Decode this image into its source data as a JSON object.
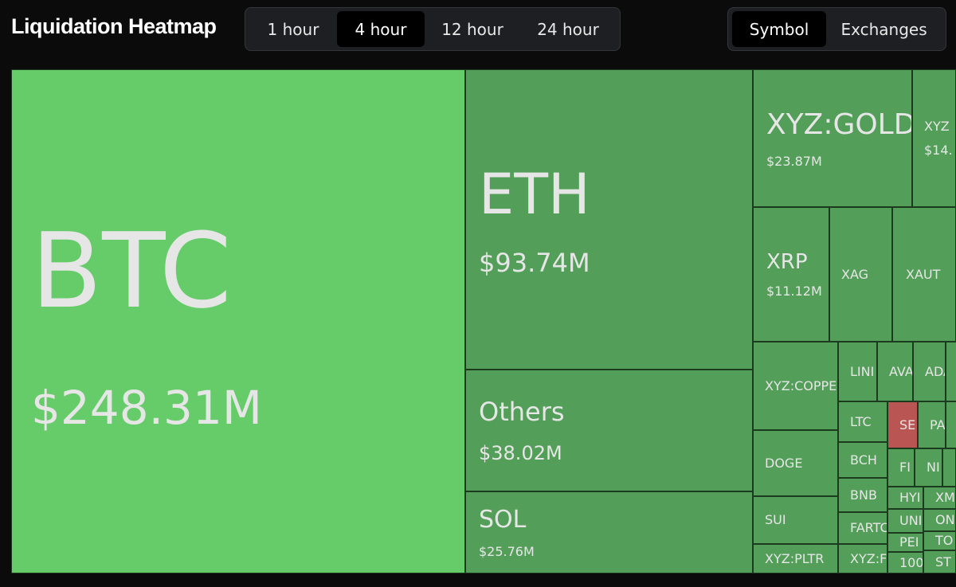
{
  "header": {
    "title": "Liquidation Heatmap",
    "timeframes": [
      "1 hour",
      "4 hour",
      "12 hour",
      "24 hour"
    ],
    "views": [
      "Symbol",
      "Exchanges"
    ]
  },
  "tiles": [
    {
      "symbol": "BTC",
      "value": "$248.31M"
    },
    {
      "symbol": "ETH",
      "value": "$93.74M"
    },
    {
      "symbol": "Others",
      "value": "$38.02M"
    },
    {
      "symbol": "SOL",
      "value": "$25.76M"
    },
    {
      "symbol": "XYZ:GOLD",
      "value": "$23.87M"
    },
    {
      "symbol": "XYZ",
      "value": "$14."
    },
    {
      "symbol": "XRP",
      "value": "$11.12M"
    },
    {
      "symbol": "XAG"
    },
    {
      "symbol": "XAUT"
    },
    {
      "symbol": "XYZ:COPPE"
    },
    {
      "symbol": "LINI"
    },
    {
      "symbol": "AVA"
    },
    {
      "symbol": "ADA"
    },
    {
      "symbol": "LTC"
    },
    {
      "symbol": "SE"
    },
    {
      "symbol": "PA"
    },
    {
      "symbol": "DOGE"
    },
    {
      "symbol": "BCH"
    },
    {
      "symbol": "FI"
    },
    {
      "symbol": "NI"
    },
    {
      "symbol": "BNB"
    },
    {
      "symbol": "HYI"
    },
    {
      "symbol": "XM"
    },
    {
      "symbol": "SUI"
    },
    {
      "symbol": "FARTC"
    },
    {
      "symbol": "UNI"
    },
    {
      "symbol": "ON"
    },
    {
      "symbol": "PEI"
    },
    {
      "symbol": "TO"
    },
    {
      "symbol": "XYZ:PLTR"
    },
    {
      "symbol": "XYZ:F"
    },
    {
      "symbol": "100"
    },
    {
      "symbol": "ST"
    }
  ]
}
